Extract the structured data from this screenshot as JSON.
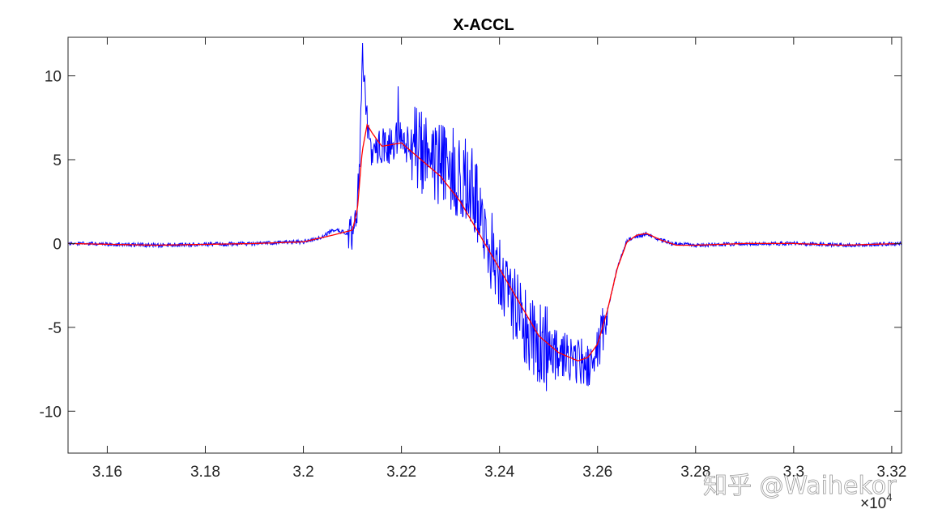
{
  "chart_data": {
    "type": "line",
    "title": "X-ACCL",
    "xlabel": "",
    "ylabel": "",
    "x_exponent_label": "×10",
    "x_exponent_power": "4",
    "xlim": [
      3.152,
      3.322
    ],
    "ylim": [
      -12.5,
      12.3
    ],
    "x_ticks": [
      3.16,
      3.18,
      3.2,
      3.22,
      3.24,
      3.26,
      3.28,
      3.3,
      3.32
    ],
    "x_tick_labels": [
      "3.16",
      "3.18",
      "3.2",
      "3.22",
      "3.24",
      "3.26",
      "3.28",
      "3.3",
      "3.32"
    ],
    "y_ticks": [
      10,
      5,
      0,
      -5,
      -10
    ],
    "y_tick_labels": [
      "10",
      "5",
      "0",
      "-5",
      "-10"
    ],
    "grid": false,
    "legend": "none",
    "series": [
      {
        "color": "#0000ff",
        "style": "raw noisy signal",
        "x": [
          3.152,
          3.17,
          3.19,
          3.2,
          3.204,
          3.206,
          3.208,
          3.209,
          3.21,
          3.211,
          3.2115,
          3.212,
          3.2125,
          3.213,
          3.214,
          3.216,
          3.22,
          3.225,
          3.23,
          3.234,
          3.236,
          3.238,
          3.24,
          3.242,
          3.244,
          3.246,
          3.25,
          3.254,
          3.258,
          3.26,
          3.262,
          3.264,
          3.266,
          3.268,
          3.27,
          3.272,
          3.275,
          3.28,
          3.29,
          3.3,
          3.31,
          3.322
        ],
        "y": [
          0,
          -0.1,
          0,
          0.1,
          0.4,
          0.8,
          0.7,
          0.6,
          0.8,
          2.5,
          4.5,
          12.0,
          9.0,
          7.0,
          5.5,
          5.8,
          6.1,
          5.2,
          4.5,
          3.5,
          2.0,
          0.0,
          -1.2,
          -2.5,
          -4.5,
          -5.8,
          -6.4,
          -6.8,
          -7.2,
          -6.5,
          -4.0,
          -1.5,
          0.2,
          0.4,
          0.6,
          0.3,
          0.0,
          -0.1,
          0.0,
          0.0,
          -0.1,
          0.0
        ],
        "noise_range": [
          3.209,
          3.262
        ]
      },
      {
        "color": "#ff0000",
        "style": "smoothed signal",
        "x": [
          3.152,
          3.17,
          3.19,
          3.2,
          3.206,
          3.21,
          3.211,
          3.212,
          3.213,
          3.214,
          3.216,
          3.22,
          3.224,
          3.228,
          3.232,
          3.236,
          3.24,
          3.244,
          3.248,
          3.252,
          3.256,
          3.258,
          3.26,
          3.262,
          3.264,
          3.266,
          3.268,
          3.27,
          3.273,
          3.276,
          3.28,
          3.29,
          3.3,
          3.31,
          3.322
        ],
        "y": [
          0,
          -0.1,
          0,
          0.1,
          0.5,
          0.8,
          2.0,
          5.5,
          7.1,
          6.6,
          5.8,
          6.0,
          5.0,
          4.0,
          2.5,
          0.5,
          -1.5,
          -3.5,
          -5.5,
          -6.5,
          -7.0,
          -6.8,
          -6.0,
          -4.0,
          -1.5,
          0.1,
          0.5,
          0.6,
          0.2,
          -0.1,
          -0.1,
          0.0,
          0.0,
          -0.1,
          0.0
        ]
      }
    ]
  },
  "watermark": "知乎 @Waihekor"
}
